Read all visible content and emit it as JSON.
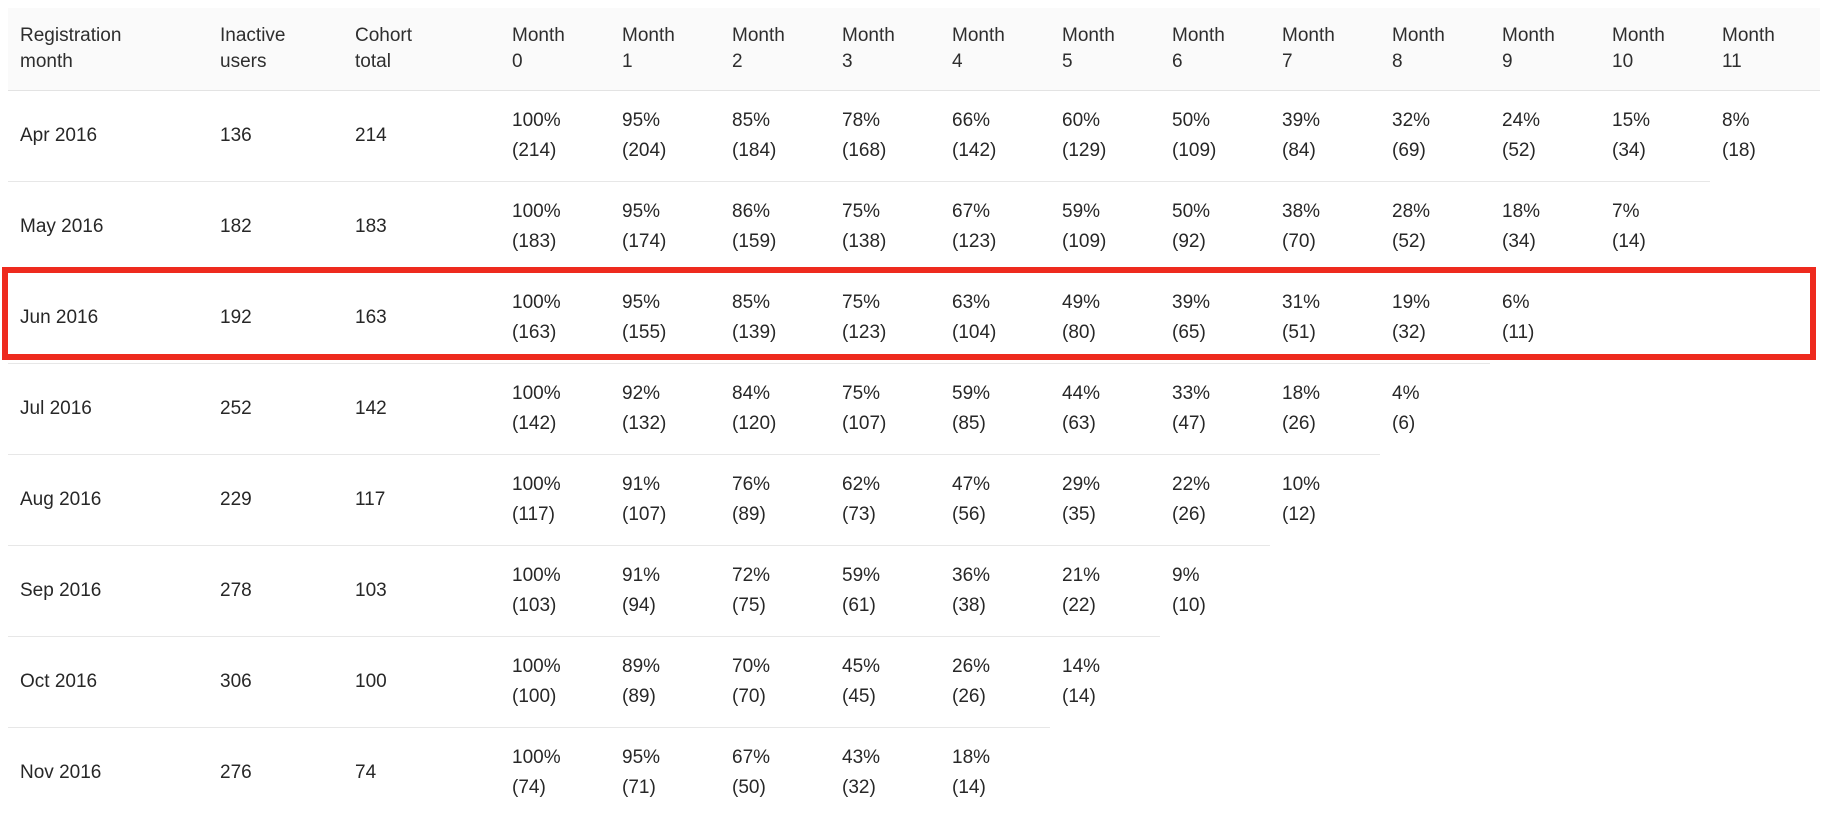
{
  "colors": {
    "header_background": "#fafafa",
    "row_divider": "#e7e7e7",
    "text": "#2e2e2e",
    "highlight_border": "#ee2a1e"
  },
  "highlight": {
    "highlighted_row": "Jun 2016",
    "border_color": "#ee2a1e"
  },
  "table": {
    "headers": [
      {
        "id": "registration-month",
        "label": "Registration month",
        "lines": [
          "Registration",
          "month"
        ]
      },
      {
        "id": "inactive-users",
        "label": "Inactive users",
        "lines": [
          "Inactive",
          "users"
        ]
      },
      {
        "id": "cohort-total",
        "label": "Cohort total",
        "lines": [
          "Cohort",
          "total"
        ]
      },
      {
        "id": "month-0",
        "label": "Month 0",
        "lines": [
          "Month",
          "0"
        ]
      },
      {
        "id": "month-1",
        "label": "Month 1",
        "lines": [
          "Month",
          "1"
        ]
      },
      {
        "id": "month-2",
        "label": "Month 2",
        "lines": [
          "Month",
          "2"
        ]
      },
      {
        "id": "month-3",
        "label": "Month 3",
        "lines": [
          "Month",
          "3"
        ]
      },
      {
        "id": "month-4",
        "label": "Month 4",
        "lines": [
          "Month",
          "4"
        ]
      },
      {
        "id": "month-5",
        "label": "Month 5",
        "lines": [
          "Month",
          "5"
        ]
      },
      {
        "id": "month-6",
        "label": "Month 6",
        "lines": [
          "Month",
          "6"
        ]
      },
      {
        "id": "month-7",
        "label": "Month 7",
        "lines": [
          "Month",
          "7"
        ]
      },
      {
        "id": "month-8",
        "label": "Month 8",
        "lines": [
          "Month",
          "8"
        ]
      },
      {
        "id": "month-9",
        "label": "Month 9",
        "lines": [
          "Month",
          "9"
        ]
      },
      {
        "id": "month-10",
        "label": "Month 10",
        "lines": [
          "Month",
          "10"
        ]
      },
      {
        "id": "month-11",
        "label": "Month 11",
        "lines": [
          "Month",
          "11"
        ]
      }
    ],
    "rows": [
      {
        "registration_month": "Apr 2016",
        "inactive_users": "136",
        "cohort_total": "214",
        "months": [
          {
            "pct": "100%",
            "count": "(214)"
          },
          {
            "pct": "95%",
            "count": "(204)"
          },
          {
            "pct": "85%",
            "count": "(184)"
          },
          {
            "pct": "78%",
            "count": "(168)"
          },
          {
            "pct": "66%",
            "count": "(142)"
          },
          {
            "pct": "60%",
            "count": "(129)"
          },
          {
            "pct": "50%",
            "count": "(109)"
          },
          {
            "pct": "39%",
            "count": "(84)"
          },
          {
            "pct": "32%",
            "count": "(69)"
          },
          {
            "pct": "24%",
            "count": "(52)"
          },
          {
            "pct": "15%",
            "count": "(34)"
          },
          {
            "pct": "8%",
            "count": "(18)"
          }
        ]
      },
      {
        "registration_month": "May 2016",
        "inactive_users": "182",
        "cohort_total": "183",
        "months": [
          {
            "pct": "100%",
            "count": "(183)"
          },
          {
            "pct": "95%",
            "count": "(174)"
          },
          {
            "pct": "86%",
            "count": "(159)"
          },
          {
            "pct": "75%",
            "count": "(138)"
          },
          {
            "pct": "67%",
            "count": "(123)"
          },
          {
            "pct": "59%",
            "count": "(109)"
          },
          {
            "pct": "50%",
            "count": "(92)"
          },
          {
            "pct": "38%",
            "count": "(70)"
          },
          {
            "pct": "28%",
            "count": "(52)"
          },
          {
            "pct": "18%",
            "count": "(34)"
          },
          {
            "pct": "7%",
            "count": "(14)"
          }
        ]
      },
      {
        "registration_month": "Jun 2016",
        "inactive_users": "192",
        "cohort_total": "163",
        "months": [
          {
            "pct": "100%",
            "count": "(163)"
          },
          {
            "pct": "95%",
            "count": "(155)"
          },
          {
            "pct": "85%",
            "count": "(139)"
          },
          {
            "pct": "75%",
            "count": "(123)"
          },
          {
            "pct": "63%",
            "count": "(104)"
          },
          {
            "pct": "49%",
            "count": "(80)"
          },
          {
            "pct": "39%",
            "count": "(65)"
          },
          {
            "pct": "31%",
            "count": "(51)"
          },
          {
            "pct": "19%",
            "count": "(32)"
          },
          {
            "pct": "6%",
            "count": "(11)"
          }
        ]
      },
      {
        "registration_month": "Jul 2016",
        "inactive_users": "252",
        "cohort_total": "142",
        "months": [
          {
            "pct": "100%",
            "count": "(142)"
          },
          {
            "pct": "92%",
            "count": "(132)"
          },
          {
            "pct": "84%",
            "count": "(120)"
          },
          {
            "pct": "75%",
            "count": "(107)"
          },
          {
            "pct": "59%",
            "count": "(85)"
          },
          {
            "pct": "44%",
            "count": "(63)"
          },
          {
            "pct": "33%",
            "count": "(47)"
          },
          {
            "pct": "18%",
            "count": "(26)"
          },
          {
            "pct": "4%",
            "count": "(6)"
          }
        ]
      },
      {
        "registration_month": "Aug 2016",
        "inactive_users": "229",
        "cohort_total": "117",
        "months": [
          {
            "pct": "100%",
            "count": "(117)"
          },
          {
            "pct": "91%",
            "count": "(107)"
          },
          {
            "pct": "76%",
            "count": "(89)"
          },
          {
            "pct": "62%",
            "count": "(73)"
          },
          {
            "pct": "47%",
            "count": "(56)"
          },
          {
            "pct": "29%",
            "count": "(35)"
          },
          {
            "pct": "22%",
            "count": "(26)"
          },
          {
            "pct": "10%",
            "count": "(12)"
          }
        ]
      },
      {
        "registration_month": "Sep 2016",
        "inactive_users": "278",
        "cohort_total": "103",
        "months": [
          {
            "pct": "100%",
            "count": "(103)"
          },
          {
            "pct": "91%",
            "count": "(94)"
          },
          {
            "pct": "72%",
            "count": "(75)"
          },
          {
            "pct": "59%",
            "count": "(61)"
          },
          {
            "pct": "36%",
            "count": "(38)"
          },
          {
            "pct": "21%",
            "count": "(22)"
          },
          {
            "pct": "9%",
            "count": "(10)"
          }
        ]
      },
      {
        "registration_month": "Oct 2016",
        "inactive_users": "306",
        "cohort_total": "100",
        "months": [
          {
            "pct": "100%",
            "count": "(100)"
          },
          {
            "pct": "89%",
            "count": "(89)"
          },
          {
            "pct": "70%",
            "count": "(70)"
          },
          {
            "pct": "45%",
            "count": "(45)"
          },
          {
            "pct": "26%",
            "count": "(26)"
          },
          {
            "pct": "14%",
            "count": "(14)"
          }
        ]
      },
      {
        "registration_month": "Nov 2016",
        "inactive_users": "276",
        "cohort_total": "74",
        "months": [
          {
            "pct": "100%",
            "count": "(74)"
          },
          {
            "pct": "95%",
            "count": "(71)"
          },
          {
            "pct": "67%",
            "count": "(50)"
          },
          {
            "pct": "43%",
            "count": "(32)"
          },
          {
            "pct": "18%",
            "count": "(14)"
          }
        ]
      }
    ]
  }
}
